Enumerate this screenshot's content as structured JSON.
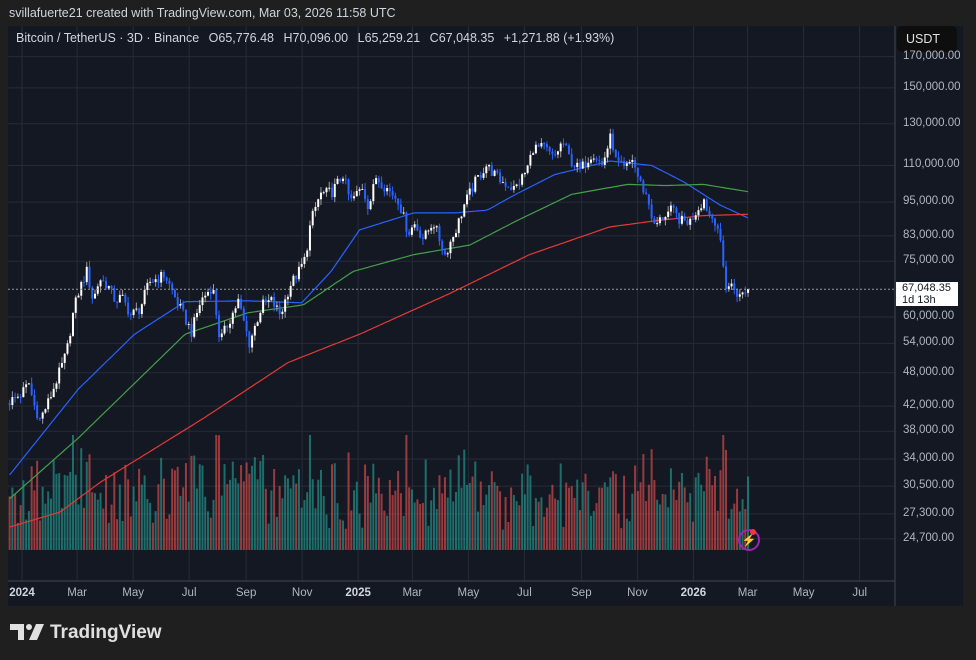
{
  "header": {
    "credit": "svillafuerte21 created with TradingView.com, Mar 03, 2026 11:58 UTC"
  },
  "legend": {
    "symbol": "Bitcoin / TetherUS · 3D · Binance",
    "open": "O65,776.48",
    "high": "H70,096.00",
    "low": "L65,259.21",
    "close": "C67,048.35",
    "change": "+1,271.88 (+1.93%)"
  },
  "price_axis": {
    "currency_button": "USDT",
    "labels": [
      "170,000.00",
      "150,000.00",
      "130,000.00",
      "110,000.00",
      "95,000.00",
      "83,000.00",
      "75,000.00",
      "60,000.00",
      "54,000.00",
      "48,000.00",
      "42,000.00",
      "38,000.00",
      "34,000.00",
      "30,500.00",
      "27,300.00",
      "24,700.00"
    ],
    "last_price": "67,048.35",
    "countdown": "1d 13h"
  },
  "time_axis": {
    "labels": [
      {
        "text": "2024",
        "date": "2024-01-01",
        "year": true
      },
      {
        "text": "Mar",
        "date": "2024-03-01"
      },
      {
        "text": "May",
        "date": "2024-05-01"
      },
      {
        "text": "Jul",
        "date": "2024-07-01"
      },
      {
        "text": "Sep",
        "date": "2024-09-01"
      },
      {
        "text": "Nov",
        "date": "2024-11-01"
      },
      {
        "text": "2025",
        "date": "2025-01-01",
        "year": true
      },
      {
        "text": "Mar",
        "date": "2025-03-01"
      },
      {
        "text": "May",
        "date": "2025-05-01"
      },
      {
        "text": "Jul",
        "date": "2025-07-01"
      },
      {
        "text": "Sep",
        "date": "2025-09-01"
      },
      {
        "text": "Nov",
        "date": "2025-11-01"
      },
      {
        "text": "2026",
        "date": "2026-01-01",
        "year": true
      },
      {
        "text": "Mar",
        "date": "2026-03-01"
      },
      {
        "text": "May",
        "date": "2026-05-01"
      },
      {
        "text": "Jul",
        "date": "2026-07-01"
      }
    ]
  },
  "branding": {
    "logo_text": "TradingView"
  },
  "colors": {
    "up": "#ffffff",
    "down": "#2962ff",
    "vol_up": "#26a69a",
    "vol_down": "#ef5350",
    "ma_fast": "#2962ff",
    "ma_mid": "#43a047",
    "ma_slow": "#e53935",
    "background": "#141823",
    "grid": "#262b38"
  },
  "chart_data": {
    "type": "candlestick",
    "symbol": "BTCUSDT",
    "interval": "3D",
    "y_scale": "log",
    "ylim": [
      23000,
      175000
    ],
    "xlim": [
      "2023-12-15",
      "2026-08-15"
    ],
    "grid": true,
    "last_candle": {
      "open": 65776.48,
      "high": 70096.0,
      "low": 65259.21,
      "close": 67048.35,
      "change": 1271.88,
      "change_pct": 1.93
    },
    "close_path": [
      [
        "2023-12-17",
        42500
      ],
      [
        "2024-01-01",
        44000
      ],
      [
        "2024-01-10",
        46000
      ],
      [
        "2024-01-15",
        42500
      ],
      [
        "2024-01-22",
        39800
      ],
      [
        "2024-02-01",
        43000
      ],
      [
        "2024-02-10",
        47000
      ],
      [
        "2024-02-20",
        52000
      ],
      [
        "2024-02-28",
        62000
      ],
      [
        "2024-03-05",
        67000
      ],
      [
        "2024-03-13",
        72000
      ],
      [
        "2024-03-20",
        64000
      ],
      [
        "2024-03-27",
        70000
      ],
      [
        "2024-04-05",
        68000
      ],
      [
        "2024-04-13",
        64000
      ],
      [
        "2024-04-20",
        65000
      ],
      [
        "2024-04-30",
        60500
      ],
      [
        "2024-05-10",
        62000
      ],
      [
        "2024-05-20",
        69000
      ],
      [
        "2024-06-06",
        71000
      ],
      [
        "2024-06-15",
        66000
      ],
      [
        "2024-06-25",
        61000
      ],
      [
        "2024-07-05",
        56500
      ],
      [
        "2024-07-15",
        64000
      ],
      [
        "2024-07-28",
        68000
      ],
      [
        "2024-08-05",
        54500
      ],
      [
        "2024-08-15",
        59000
      ],
      [
        "2024-08-25",
        64000
      ],
      [
        "2024-09-06",
        54000
      ],
      [
        "2024-09-20",
        63000
      ],
      [
        "2024-09-30",
        64000
      ],
      [
        "2024-10-10",
        60500
      ],
      [
        "2024-10-20",
        68000
      ],
      [
        "2024-10-30",
        72000
      ],
      [
        "2024-11-06",
        76000
      ],
      [
        "2024-11-12",
        88000
      ],
      [
        "2024-11-22",
        98000
      ],
      [
        "2024-12-05",
        99000
      ],
      [
        "2024-12-17",
        106000
      ],
      [
        "2024-12-25",
        95000
      ],
      [
        "2025-01-07",
        101000
      ],
      [
        "2025-01-14",
        93000
      ],
      [
        "2025-01-22",
        105000
      ],
      [
        "2025-02-01",
        101000
      ],
      [
        "2025-02-15",
        96000
      ],
      [
        "2025-02-26",
        84000
      ],
      [
        "2025-03-05",
        87000
      ],
      [
        "2025-03-15",
        82000
      ],
      [
        "2025-03-25",
        88000
      ],
      [
        "2025-04-07",
        77000
      ],
      [
        "2025-04-20",
        86000
      ],
      [
        "2025-04-28",
        94000
      ],
      [
        "2025-05-10",
        103000
      ],
      [
        "2025-05-22",
        110000
      ],
      [
        "2025-06-05",
        104000
      ],
      [
        "2025-06-22",
        100000
      ],
      [
        "2025-07-05",
        108000
      ],
      [
        "2025-07-12",
        118000
      ],
      [
        "2025-07-25",
        118000
      ],
      [
        "2025-08-03",
        113000
      ],
      [
        "2025-08-13",
        121000
      ],
      [
        "2025-08-22",
        112000
      ],
      [
        "2025-09-01",
        108000
      ],
      [
        "2025-09-15",
        116000
      ],
      [
        "2025-09-25",
        110000
      ],
      [
        "2025-10-05",
        124000
      ],
      [
        "2025-10-10",
        112000
      ],
      [
        "2025-10-20",
        108000
      ],
      [
        "2025-10-28",
        113000
      ],
      [
        "2025-11-04",
        104000
      ],
      [
        "2025-11-14",
        96000
      ],
      [
        "2025-11-21",
        86000
      ],
      [
        "2025-12-01",
        90000
      ],
      [
        "2025-12-10",
        92000
      ],
      [
        "2025-12-20",
        88000
      ],
      [
        "2025-12-30",
        88000
      ],
      [
        "2026-01-06",
        92000
      ],
      [
        "2026-01-14",
        96000
      ],
      [
        "2026-01-20",
        90000
      ],
      [
        "2026-01-28",
        88000
      ],
      [
        "2026-02-03",
        76000
      ],
      [
        "2026-02-06",
        68000
      ],
      [
        "2026-02-14",
        68000
      ],
      [
        "2026-02-22",
        65000
      ],
      [
        "2026-03-01",
        67048.35
      ]
    ],
    "moving_averages": [
      {
        "key": "ma_fast",
        "points": [
          [
            "2023-12-17",
            31900
          ],
          [
            "2024-03-01",
            45000
          ],
          [
            "2024-05-01",
            56000
          ],
          [
            "2024-06-25",
            63800
          ],
          [
            "2024-09-01",
            64000
          ],
          [
            "2024-10-30",
            63500
          ],
          [
            "2024-12-01",
            72000
          ],
          [
            "2025-01-01",
            85000
          ],
          [
            "2025-03-01",
            91000
          ],
          [
            "2025-04-15",
            91000
          ],
          [
            "2025-05-20",
            92000
          ],
          [
            "2025-06-20",
            98000
          ],
          [
            "2025-08-01",
            106000
          ],
          [
            "2025-10-01",
            112000
          ],
          [
            "2025-11-15",
            110000
          ],
          [
            "2025-12-20",
            103000
          ],
          [
            "2026-01-28",
            94000
          ],
          [
            "2026-03-01",
            89000
          ]
        ]
      },
      {
        "key": "ma_mid",
        "points": [
          [
            "2023-12-17",
            29000
          ],
          [
            "2024-03-01",
            37000
          ],
          [
            "2024-06-25",
            56000
          ],
          [
            "2024-09-01",
            61000
          ],
          [
            "2024-11-01",
            63000
          ],
          [
            "2024-12-25",
            72000
          ],
          [
            "2025-03-01",
            77000
          ],
          [
            "2025-05-01",
            80000
          ],
          [
            "2025-06-20",
            88000
          ],
          [
            "2025-08-20",
            98000
          ],
          [
            "2025-10-20",
            102000
          ],
          [
            "2025-12-01",
            101500
          ],
          [
            "2026-01-10",
            102000
          ],
          [
            "2026-03-01",
            99000
          ]
        ]
      },
      {
        "key": "ma_slow",
        "points": [
          [
            "2023-12-17",
            25900
          ],
          [
            "2024-02-10",
            27500
          ],
          [
            "2024-03-25",
            31000
          ],
          [
            "2024-07-15",
            40000
          ],
          [
            "2024-10-15",
            50000
          ],
          [
            "2025-01-01",
            56000
          ],
          [
            "2025-04-10",
            66000
          ],
          [
            "2025-07-05",
            77000
          ],
          [
            "2025-09-30",
            86000
          ],
          [
            "2025-11-15",
            88000
          ],
          [
            "2026-01-10",
            90000
          ],
          [
            "2026-03-01",
            90500
          ]
        ]
      }
    ]
  }
}
